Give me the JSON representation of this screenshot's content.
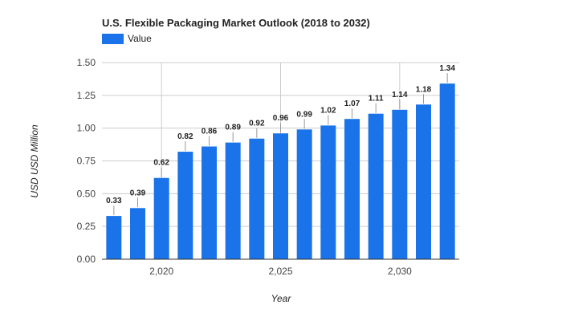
{
  "chart_data": {
    "type": "bar",
    "title": "U.S. Flexible Packaging Market Outlook (2018 to 2032)",
    "xlabel": "Year",
    "ylabel": "USD USD Million",
    "x": [
      2018,
      2019,
      2020,
      2021,
      2022,
      2023,
      2024,
      2025,
      2026,
      2027,
      2028,
      2029,
      2030,
      2031,
      2032
    ],
    "series": [
      {
        "name": "Value",
        "color": "#1a73e8",
        "values": [
          0.33,
          0.39,
          0.62,
          0.82,
          0.86,
          0.89,
          0.92,
          0.96,
          0.99,
          1.02,
          1.07,
          1.11,
          1.14,
          1.18,
          1.34
        ]
      }
    ],
    "data_labels": [
      "0.33",
      "0.39",
      "0.62",
      "0.82",
      "0.86",
      "0.89",
      "0.92",
      "0.96",
      "0.99",
      "1.02",
      "1.07",
      "1.11",
      "1.14",
      "1.18",
      "1.34"
    ],
    "ylim": [
      0,
      1.5
    ],
    "y_ticks": [
      0,
      0.25,
      0.5,
      0.75,
      1.0,
      1.25,
      1.5
    ],
    "y_tick_labels": [
      "0.00",
      "0.25",
      "0.50",
      "0.75",
      "1.00",
      "1.25",
      "1.50"
    ],
    "x_ticks": [
      2020,
      2025,
      2030
    ],
    "x_tick_labels": [
      "2,020",
      "2,025",
      "2,030"
    ],
    "grid": true,
    "legend": "top-left"
  }
}
